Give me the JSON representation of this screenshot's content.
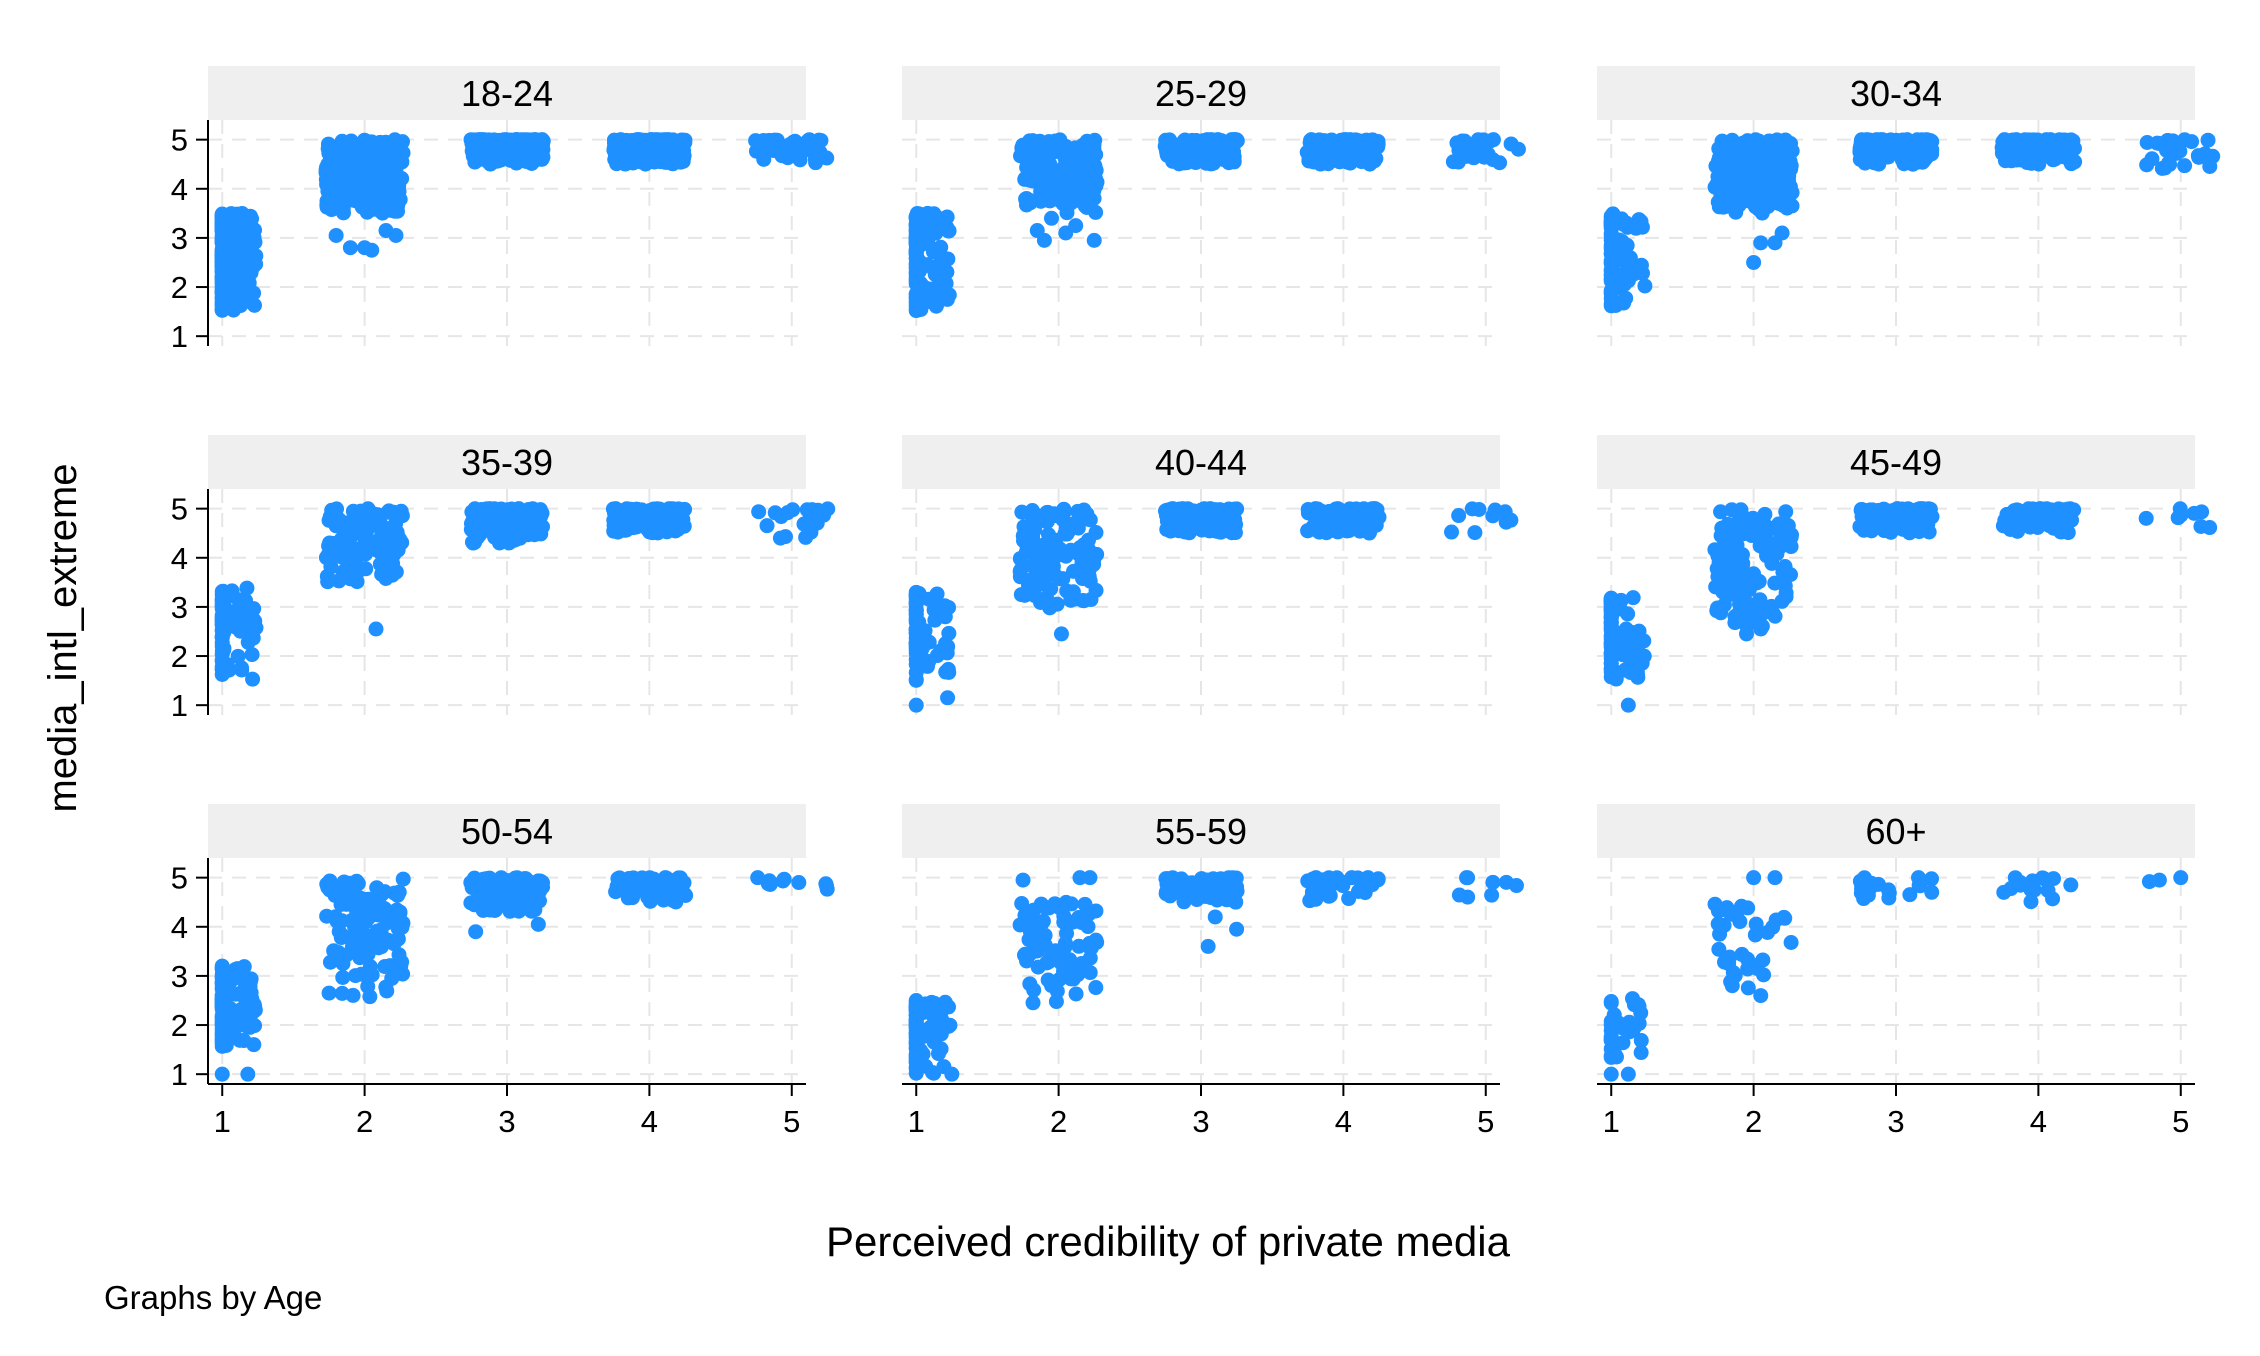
{
  "chart_data": {
    "type": "scatter",
    "xlabel": "Perceived credibility of private media",
    "ylabel": "media_intl_extreme",
    "note": "Graphs by Age",
    "x_ticks": [
      1,
      2,
      3,
      4,
      5
    ],
    "y_ticks": [
      1,
      2,
      3,
      4,
      5
    ],
    "xlim": [
      0.9,
      5.1
    ],
    "ylim": [
      0.8,
      5.4
    ],
    "grid": true,
    "marker_color": "#1E90FF",
    "strip_color": "#EFEFEF",
    "grid_color": "#E6E6E6",
    "panels": [
      {
        "title": "18-24",
        "clusters": [
          {
            "x": 1,
            "x_spread": 0.28,
            "y_min": 1.5,
            "y_max": 3.5,
            "count": 240
          },
          {
            "x": 2,
            "x_spread": 0.32,
            "y_min": 3.5,
            "y_max": 5.0,
            "count": 300
          },
          {
            "x": 3,
            "x_spread": 0.3,
            "y_min": 4.5,
            "y_max": 5.0,
            "count": 240
          },
          {
            "x": 4,
            "x_spread": 0.3,
            "y_min": 4.5,
            "y_max": 5.0,
            "count": 200
          },
          {
            "x": 5,
            "x_spread": 0.3,
            "y_min": 4.5,
            "y_max": 5.0,
            "count": 40
          }
        ],
        "points": [
          [
            1.8,
            3.05
          ],
          [
            1.9,
            2.8
          ],
          [
            2.0,
            2.8
          ],
          [
            2.05,
            2.75
          ],
          [
            2.15,
            3.15
          ],
          [
            2.22,
            3.05
          ]
        ]
      },
      {
        "title": "25-29",
        "clusters": [
          {
            "x": 1,
            "x_spread": 0.28,
            "y_min": 1.5,
            "y_max": 3.5,
            "count": 120
          },
          {
            "x": 2,
            "x_spread": 0.32,
            "y_min": 3.5,
            "y_max": 5.0,
            "count": 160
          },
          {
            "x": 3,
            "x_spread": 0.3,
            "y_min": 4.5,
            "y_max": 5.0,
            "count": 150
          },
          {
            "x": 4,
            "x_spread": 0.3,
            "y_min": 4.5,
            "y_max": 5.0,
            "count": 130
          },
          {
            "x": 5,
            "x_spread": 0.3,
            "y_min": 4.5,
            "y_max": 5.0,
            "count": 25
          }
        ],
        "points": [
          [
            1.85,
            3.15
          ],
          [
            1.9,
            2.95
          ],
          [
            2.05,
            3.1
          ],
          [
            2.12,
            3.25
          ],
          [
            2.25,
            2.95
          ],
          [
            1.95,
            3.4
          ]
        ]
      },
      {
        "title": "30-34",
        "clusters": [
          {
            "x": 1,
            "x_spread": 0.28,
            "y_min": 1.5,
            "y_max": 3.5,
            "count": 70
          },
          {
            "x": 2,
            "x_spread": 0.32,
            "y_min": 3.5,
            "y_max": 5.0,
            "count": 220
          },
          {
            "x": 3,
            "x_spread": 0.3,
            "y_min": 4.5,
            "y_max": 5.0,
            "count": 170
          },
          {
            "x": 4,
            "x_spread": 0.3,
            "y_min": 4.5,
            "y_max": 5.0,
            "count": 140
          },
          {
            "x": 5,
            "x_spread": 0.3,
            "y_min": 4.4,
            "y_max": 5.0,
            "count": 25
          }
        ],
        "points": [
          [
            2.0,
            2.5
          ],
          [
            2.05,
            2.9
          ],
          [
            2.15,
            2.9
          ],
          [
            2.2,
            3.1
          ]
        ]
      },
      {
        "title": "35-39",
        "clusters": [
          {
            "x": 1,
            "x_spread": 0.28,
            "y_min": 1.5,
            "y_max": 3.4,
            "count": 70
          },
          {
            "x": 2,
            "x_spread": 0.32,
            "y_min": 3.5,
            "y_max": 5.0,
            "count": 130
          },
          {
            "x": 3,
            "x_spread": 0.3,
            "y_min": 4.3,
            "y_max": 5.0,
            "count": 130
          },
          {
            "x": 4,
            "x_spread": 0.3,
            "y_min": 4.5,
            "y_max": 5.0,
            "count": 110
          },
          {
            "x": 5,
            "x_spread": 0.3,
            "y_min": 4.4,
            "y_max": 5.0,
            "count": 20
          }
        ],
        "points": [
          [
            2.08,
            2.55
          ]
        ]
      },
      {
        "title": "40-44",
        "clusters": [
          {
            "x": 1,
            "x_spread": 0.28,
            "y_min": 1.5,
            "y_max": 3.3,
            "count": 70
          },
          {
            "x": 2,
            "x_spread": 0.32,
            "y_min": 2.9,
            "y_max": 5.0,
            "count": 110
          },
          {
            "x": 3,
            "x_spread": 0.3,
            "y_min": 4.5,
            "y_max": 5.0,
            "count": 130
          },
          {
            "x": 4,
            "x_spread": 0.3,
            "y_min": 4.5,
            "y_max": 5.0,
            "count": 90
          },
          {
            "x": 5,
            "x_spread": 0.3,
            "y_min": 4.5,
            "y_max": 5.0,
            "count": 10
          }
        ],
        "points": [
          [
            1.0,
            1.0
          ],
          [
            1.22,
            1.15
          ],
          [
            2.02,
            2.45
          ]
        ]
      },
      {
        "title": "45-49",
        "clusters": [
          {
            "x": 1,
            "x_spread": 0.28,
            "y_min": 1.5,
            "y_max": 3.2,
            "count": 90
          },
          {
            "x": 2,
            "x_spread": 0.32,
            "y_min": 2.5,
            "y_max": 5.0,
            "count": 130
          },
          {
            "x": 3,
            "x_spread": 0.3,
            "y_min": 4.5,
            "y_max": 5.0,
            "count": 110
          },
          {
            "x": 4,
            "x_spread": 0.3,
            "y_min": 4.5,
            "y_max": 5.0,
            "count": 80
          },
          {
            "x": 5,
            "x_spread": 0.3,
            "y_min": 4.5,
            "y_max": 5.0,
            "count": 8
          }
        ],
        "points": [
          [
            1.12,
            1.0
          ],
          [
            1.95,
            2.45
          ],
          [
            2.05,
            2.55
          ]
        ]
      },
      {
        "title": "50-54",
        "clusters": [
          {
            "x": 1,
            "x_spread": 0.28,
            "y_min": 1.5,
            "y_max": 3.2,
            "count": 110
          },
          {
            "x": 2,
            "x_spread": 0.32,
            "y_min": 2.5,
            "y_max": 5.0,
            "count": 120
          },
          {
            "x": 3,
            "x_spread": 0.3,
            "y_min": 4.3,
            "y_max": 5.0,
            "count": 100
          },
          {
            "x": 4,
            "x_spread": 0.3,
            "y_min": 4.5,
            "y_max": 5.0,
            "count": 60
          },
          {
            "x": 5,
            "x_spread": 0.3,
            "y_min": 4.6,
            "y_max": 5.0,
            "count": 10
          }
        ],
        "points": [
          [
            1.0,
            1.0
          ],
          [
            1.18,
            1.0
          ],
          [
            2.78,
            3.9
          ],
          [
            3.22,
            4.05
          ]
        ]
      },
      {
        "title": "55-59",
        "clusters": [
          {
            "x": 1,
            "x_spread": 0.28,
            "y_min": 1.0,
            "y_max": 2.5,
            "count": 90
          },
          {
            "x": 2,
            "x_spread": 0.32,
            "y_min": 2.4,
            "y_max": 4.5,
            "count": 80
          },
          {
            "x": 3,
            "x_spread": 0.3,
            "y_min": 4.5,
            "y_max": 5.0,
            "count": 50
          },
          {
            "x": 4,
            "x_spread": 0.3,
            "y_min": 4.5,
            "y_max": 5.0,
            "count": 35
          },
          {
            "x": 5,
            "x_spread": 0.3,
            "y_min": 4.6,
            "y_max": 5.0,
            "count": 8
          }
        ],
        "points": [
          [
            1.75,
            4.95
          ],
          [
            2.15,
            5.0
          ],
          [
            2.22,
            5.0
          ],
          [
            3.05,
            3.6
          ],
          [
            3.25,
            3.95
          ],
          [
            3.1,
            4.2
          ],
          [
            1.25,
            1.0
          ]
        ]
      },
      {
        "title": "60+",
        "clusters": [
          {
            "x": 1,
            "x_spread": 0.26,
            "y_min": 1.3,
            "y_max": 2.6,
            "count": 30
          },
          {
            "x": 2,
            "x_spread": 0.32,
            "y_min": 2.6,
            "y_max": 4.5,
            "count": 35
          },
          {
            "x": 3,
            "x_spread": 0.3,
            "y_min": 4.5,
            "y_max": 5.0,
            "count": 20
          },
          {
            "x": 4,
            "x_spread": 0.3,
            "y_min": 4.5,
            "y_max": 5.0,
            "count": 15
          }
        ],
        "points": [
          [
            1.0,
            1.0
          ],
          [
            1.12,
            1.0
          ],
          [
            4.78,
            4.92
          ],
          [
            4.85,
            4.95
          ],
          [
            5.0,
            5.0
          ],
          [
            2.0,
            5.0
          ],
          [
            2.15,
            5.0
          ],
          [
            1.85,
            2.8
          ],
          [
            2.05,
            2.6
          ]
        ]
      }
    ]
  }
}
